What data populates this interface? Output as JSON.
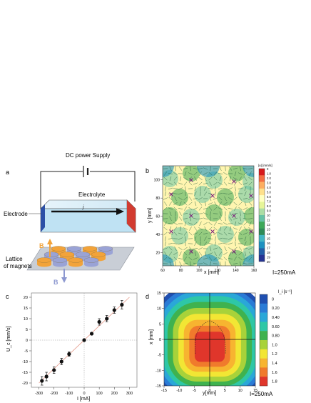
{
  "panel_a": {
    "label": "a",
    "power_supply_label": "DC power Supply",
    "electrolyte_label": "Electrolyte",
    "current_label": "j",
    "electrode_label": "Electrode",
    "b_up_label": "B",
    "b_down_label": "B",
    "lattice_label_line1": "Lattice",
    "lattice_label_line2": "of magnets",
    "colors": {
      "electrode_left": "#2c4fa6",
      "electrode_right": "#d23b30",
      "magnet_orange": "#f2a33a",
      "magnet_blue": "#9aa3d6",
      "electrolyte": "#bfe2f3"
    }
  },
  "panel_b": {
    "label": "b",
    "colorbar_title": "|u| [mm/s]",
    "colorbar_ticks": [
      "0",
      "1.0",
      "2.0",
      "3.0",
      "4.0",
      "5.0",
      "6.0",
      "7.0",
      "8.0",
      "9.0",
      "10",
      "11",
      "12",
      "13",
      "14",
      "15",
      "16",
      "17",
      "18",
      "19",
      "20"
    ],
    "colorbar_colors": [
      "#d7191c",
      "#f46d43",
      "#fdae61",
      "#fee08b",
      "#ffffbf",
      "#e6f598",
      "#abdda4",
      "#66c2a5",
      "#3da858",
      "#2e8b57",
      "#41b6c4",
      "#1d91c0",
      "#225ea8",
      "#253494"
    ],
    "x_label": "x [mm]",
    "y_label": "y [mm]",
    "x_ticks": [
      "60",
      "80",
      "100",
      "120",
      "140",
      "160"
    ],
    "y_ticks": [
      "20",
      "40",
      "60",
      "80",
      "100"
    ],
    "current_note": "I=250mA"
  },
  "panel_c": {
    "label": "c",
    "x_label": "I [mA]",
    "y_label": "U_c [mm/s]",
    "x_ticks": [
      "-300",
      "-200",
      "-100",
      "0",
      "100",
      "200",
      "300"
    ],
    "y_ticks": [
      "-20",
      "-15",
      "-10",
      "-5",
      "0",
      "5",
      "10",
      "15",
      "20"
    ]
  },
  "panel_d": {
    "label": "d",
    "colorbar_title": "l_i [s⁻¹]",
    "colorbar_ticks": [
      "0",
      "0.20",
      "0.40",
      "0.60",
      "0.80",
      "1.0",
      "1.2",
      "1.4",
      "1.6",
      "1.8"
    ],
    "colorbar_colors": [
      "#1f4fb0",
      "#2a7bd6",
      "#2aa7d8",
      "#2ec7a6",
      "#3fb24f",
      "#a8d23a",
      "#f2e634",
      "#f7b430",
      "#f07a2c",
      "#e0362b"
    ],
    "x_label": "y[mm]",
    "y_label": "x [mm]",
    "x_ticks": [
      "-15",
      "-10",
      "-5",
      "0",
      "5",
      "10",
      "15"
    ],
    "y_ticks": [
      "15",
      "10",
      "5",
      "0",
      "-5",
      "-10",
      "-15"
    ],
    "current_note": "I=250mA"
  },
  "chart_data": [
    {
      "type": "scatter",
      "title": "",
      "xlabel": "I [mA]",
      "ylabel": "U_c [mm/s]",
      "xlim": [
        -350,
        350
      ],
      "ylim": [
        -22,
        22
      ],
      "grid": false,
      "series": [
        {
          "x": [
            -280,
            -250,
            -200,
            -150,
            -100,
            0,
            50,
            100,
            150,
            200,
            250
          ],
          "y": [
            -19,
            -17,
            -14,
            -10,
            -6.5,
            0,
            3,
            8.5,
            10,
            14,
            16.5
          ],
          "yerr": [
            2,
            2,
            1.5,
            1.5,
            1,
            0.5,
            0.5,
            1.5,
            1.5,
            1.5,
            2
          ]
        }
      ],
      "fit_line": {
        "x": [
          -300,
          300
        ],
        "y": [
          -20,
          20
        ]
      }
    }
  ]
}
